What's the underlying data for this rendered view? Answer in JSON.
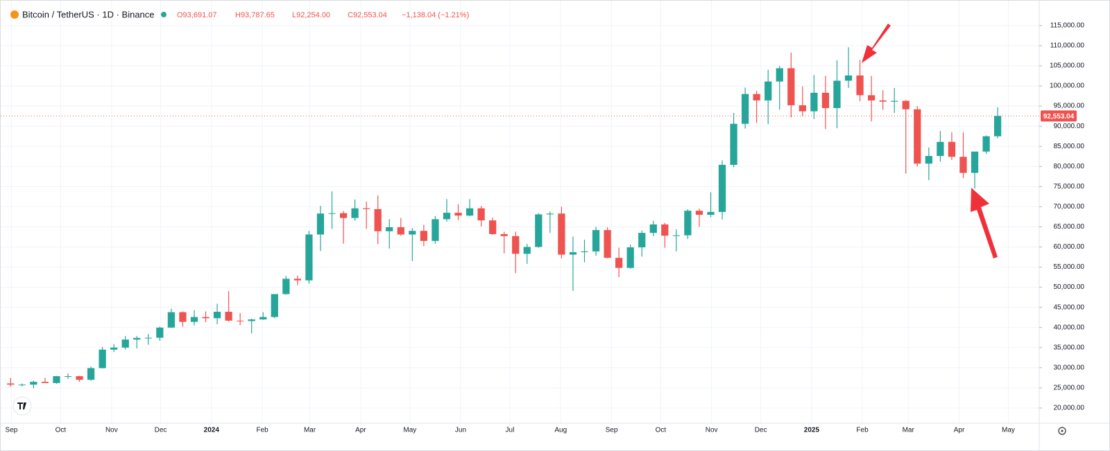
{
  "header": {
    "symbol": "Bitcoin / TetherUS · 1D · Binance",
    "open": "O93,691.07",
    "high": "H93,787.65",
    "low": "L92,254.00",
    "close": "C92,553.04",
    "change": "−1,138.04 (−1.21%)"
  },
  "chart_data": {
    "type": "candlestick",
    "up_color": "#26a69a",
    "down_color": "#ef5350",
    "grid": true,
    "open": [
      26100,
      25800,
      25800,
      26500,
      26200,
      27900,
      27900,
      27000,
      29900,
      34500,
      35000,
      37000,
      37400,
      37450,
      39970,
      43800,
      41400,
      42600,
      42300,
      43900,
      41700,
      41600,
      42000,
      42600,
      48300,
      52100,
      51700,
      63100,
      68300,
      68400,
      67200,
      69600,
      69400,
      63900,
      64900,
      63100,
      64000,
      61500,
      66900,
      68500,
      67800,
      69600,
      66600,
      63200,
      62700,
      58300,
      60000,
      68100,
      68300,
      58100,
      58700,
      58900,
      64200,
      57300,
      54800,
      59900,
      63500,
      65600,
      62800,
      62900,
      69000,
      68000,
      68700,
      80400,
      90600,
      98000,
      96400,
      101100,
      104400,
      95200,
      93700,
      98300,
      94500,
      101300,
      102600,
      97700,
      96400,
      96100,
      96300,
      94200,
      80700,
      82600,
      86100,
      82400,
      78400,
      83700,
      87500
    ],
    "high": [
      27500,
      26100,
      26800,
      27500,
      28000,
      28600,
      28000,
      30300,
      35200,
      35900,
      37900,
      37900,
      38400,
      40200,
      44700,
      44000,
      44300,
      44000,
      45900,
      49000,
      43600,
      42200,
      43800,
      48200,
      52800,
      52900,
      64000,
      70200,
      73800,
      68900,
      71800,
      71300,
      72800,
      66900,
      67200,
      64700,
      65500,
      67700,
      71900,
      70600,
      71900,
      70200,
      67300,
      63800,
      63800,
      60800,
      68400,
      68800,
      70000,
      62600,
      61800,
      65000,
      64900,
      59800,
      60600,
      64100,
      66500,
      66000,
      64400,
      69400,
      69500,
      73600,
      81500,
      93300,
      99600,
      98800,
      104000,
      105000,
      108300,
      99900,
      102700,
      102500,
      106400,
      109600,
      106500,
      102500,
      98900,
      99500,
      96500,
      95000,
      84700,
      88800,
      88500,
      88500,
      83600,
      87700,
      94700
    ],
    "low": [
      25300,
      25400,
      24900,
      26300,
      26000,
      27200,
      26500,
      26800,
      29800,
      33900,
      34500,
      34800,
      35700,
      36700,
      39900,
      40200,
      40500,
      41300,
      40800,
      41500,
      40600,
      38500,
      41900,
      42300,
      48100,
      50500,
      50900,
      59000,
      64500,
      60800,
      66500,
      64500,
      60700,
      59600,
      62800,
      56500,
      60200,
      60800,
      66300,
      66700,
      67600,
      65100,
      63000,
      58400,
      53500,
      55800,
      59800,
      63500,
      57200,
      49100,
      56200,
      57800,
      57200,
      52500,
      54600,
      57600,
      62700,
      59800,
      58900,
      62000,
      65000,
      67400,
      66800,
      79800,
      89400,
      90800,
      90500,
      94100,
      92200,
      92500,
      91800,
      89300,
      89500,
      99500,
      96200,
      91200,
      94100,
      93300,
      78200,
      80000,
      76600,
      81200,
      81600,
      77100,
      74500,
      83100,
      87000
    ],
    "close": [
      25800,
      25800,
      26500,
      26200,
      27900,
      27900,
      27000,
      29900,
      34500,
      35000,
      37000,
      37400,
      37450,
      39970,
      43800,
      41400,
      42600,
      42300,
      43900,
      41700,
      41600,
      42000,
      42600,
      48300,
      52100,
      51700,
      63100,
      68300,
      68400,
      67200,
      69600,
      69400,
      63900,
      64900,
      63100,
      64000,
      61500,
      66900,
      68500,
      67800,
      69600,
      66600,
      63200,
      62700,
      58300,
      60000,
      68100,
      68300,
      58100,
      58700,
      58900,
      64200,
      57300,
      54800,
      59900,
      63500,
      65600,
      62800,
      62900,
      69000,
      68000,
      68700,
      80400,
      90600,
      98000,
      96400,
      101100,
      104400,
      95200,
      93700,
      98300,
      94500,
      101300,
      102600,
      97700,
      96400,
      96100,
      96300,
      94200,
      80700,
      82600,
      86100,
      82400,
      78400,
      83700,
      87500,
      92553.04
    ],
    "last_price": 92553.04,
    "last_price_label": "92,553.04",
    "xlim": [
      0,
      90
    ],
    "xticks": [
      {
        "value": 0.57,
        "label": "Sep"
      },
      {
        "value": 4.86,
        "label": "Oct"
      },
      {
        "value": 9.3,
        "label": "Nov"
      },
      {
        "value": 13.57,
        "label": "Dec"
      },
      {
        "value": 18,
        "label": "2024"
      },
      {
        "value": 22.43,
        "label": "Feb"
      },
      {
        "value": 26.57,
        "label": "Mar"
      },
      {
        "value": 31,
        "label": "Apr"
      },
      {
        "value": 35.29,
        "label": "May"
      },
      {
        "value": 39.71,
        "label": "Jun"
      },
      {
        "value": 44,
        "label": "Jul"
      },
      {
        "value": 48.43,
        "label": "Aug"
      },
      {
        "value": 52.86,
        "label": "Sep"
      },
      {
        "value": 57.14,
        "label": "Oct"
      },
      {
        "value": 61.57,
        "label": "Nov"
      },
      {
        "value": 65.86,
        "label": "Dec"
      },
      {
        "value": 70.29,
        "label": "2025"
      },
      {
        "value": 74.71,
        "label": "Feb"
      },
      {
        "value": 78.71,
        "label": "Mar"
      },
      {
        "value": 83.14,
        "label": "Apr"
      },
      {
        "value": 87.43,
        "label": "May"
      }
    ],
    "ylim": [
      16200,
      119800
    ],
    "yticks": [
      {
        "value": 20000,
        "label": "20,000.00"
      },
      {
        "value": 25000,
        "label": "25,000.00"
      },
      {
        "value": 30000,
        "label": "30,000.00"
      },
      {
        "value": 35000,
        "label": "35,000.00"
      },
      {
        "value": 40000,
        "label": "40,000.00"
      },
      {
        "value": 45000,
        "label": "45,000.00"
      },
      {
        "value": 50000,
        "label": "50,000.00"
      },
      {
        "value": 55000,
        "label": "55,000.00"
      },
      {
        "value": 60000,
        "label": "60,000.00"
      },
      {
        "value": 65000,
        "label": "65,000.00"
      },
      {
        "value": 70000,
        "label": "70,000.00"
      },
      {
        "value": 75000,
        "label": "75,000.00"
      },
      {
        "value": 80000,
        "label": "80,000.00"
      },
      {
        "value": 85000,
        "label": "85,000.00"
      },
      {
        "value": 90000,
        "label": "90,000.00"
      },
      {
        "value": 95000,
        "label": "95,000.00"
      },
      {
        "value": 100000,
        "label": "100,000.00"
      },
      {
        "value": 105000,
        "label": "105,000.00"
      },
      {
        "value": 110000,
        "label": "110,000.00"
      },
      {
        "value": 115000,
        "label": "115,000.00"
      }
    ]
  }
}
